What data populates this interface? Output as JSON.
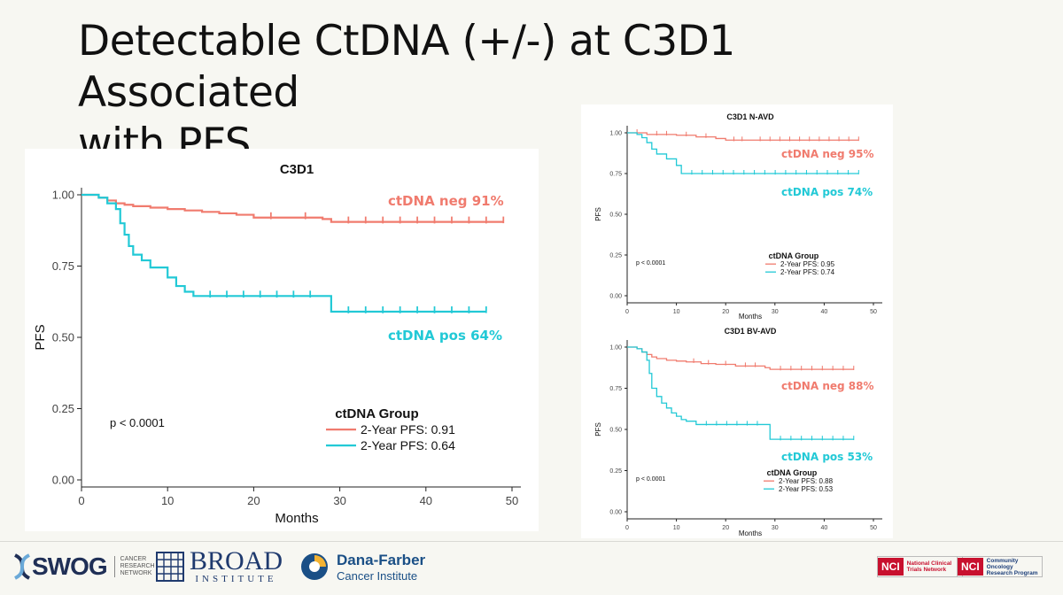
{
  "slide": {
    "title_line1": "Detectable CtDNA (+/-) at C3D1 Associated",
    "title_line2": "with PFS"
  },
  "colors": {
    "neg": "#f07b6e",
    "pos": "#22c9d6"
  },
  "chart_data": [
    {
      "type": "line",
      "title": "C3D1",
      "xlabel": "Months",
      "ylabel": "PFS",
      "xlim": [
        0,
        50
      ],
      "ylim": [
        0,
        1
      ],
      "xticks": [
        "0",
        "10",
        "20",
        "30",
        "40",
        "50"
      ],
      "yticks": [
        "0.00",
        "0.25",
        "0.50",
        "0.75",
        "1.00"
      ],
      "pvalue": "p < 0.0001",
      "legend_title": "ctDNA Group",
      "series": [
        {
          "name": "2-Year PFS: 0.91",
          "annotation": "ctDNA neg 91%",
          "x": [
            0,
            2,
            3,
            4,
            5,
            6,
            8,
            10,
            12,
            14,
            16,
            18,
            20,
            24,
            28,
            29,
            49
          ],
          "y": [
            1.0,
            0.99,
            0.98,
            0.97,
            0.965,
            0.96,
            0.955,
            0.95,
            0.945,
            0.94,
            0.935,
            0.93,
            0.92,
            0.92,
            0.915,
            0.905,
            0.905
          ]
        },
        {
          "name": "2-Year PFS: 0.64",
          "annotation": "ctDNA pos 64%",
          "x": [
            0,
            2,
            3,
            4,
            4.5,
            5,
            5.5,
            6,
            7,
            8,
            9,
            10,
            11,
            12,
            13,
            28.5,
            29,
            47
          ],
          "y": [
            1.0,
            0.99,
            0.97,
            0.95,
            0.9,
            0.86,
            0.82,
            0.79,
            0.77,
            0.745,
            0.745,
            0.71,
            0.68,
            0.66,
            0.645,
            0.645,
            0.59,
            0.59
          ]
        }
      ]
    },
    {
      "type": "line",
      "title": "C3D1 N-AVD",
      "xlabel": "Months",
      "ylabel": "PFS",
      "xlim": [
        0,
        50
      ],
      "ylim": [
        0,
        1
      ],
      "xticks": [
        "0",
        "10",
        "20",
        "30",
        "40",
        "50"
      ],
      "yticks": [
        "0.00",
        "0.25",
        "0.50",
        "0.75",
        "1.00"
      ],
      "pvalue": "p < 0.0001",
      "legend_title": "ctDNA Group",
      "series": [
        {
          "name": "2-Year PFS: 0.95",
          "annotation": "ctDNA neg 95%",
          "x": [
            0,
            4,
            10,
            14,
            18,
            20,
            25,
            47
          ],
          "y": [
            1.0,
            0.99,
            0.985,
            0.975,
            0.965,
            0.955,
            0.955,
            0.955
          ]
        },
        {
          "name": "2-Year PFS: 0.74",
          "annotation": "ctDNA pos 74%",
          "x": [
            0,
            2,
            3,
            4,
            5,
            6,
            8,
            10,
            11,
            47
          ],
          "y": [
            1.0,
            0.99,
            0.97,
            0.94,
            0.9,
            0.87,
            0.84,
            0.8,
            0.75,
            0.75
          ]
        }
      ]
    },
    {
      "type": "line",
      "title": "C3D1 BV-AVD",
      "xlabel": "Months",
      "ylabel": "PFS",
      "xlim": [
        0,
        50
      ],
      "ylim": [
        0,
        1
      ],
      "xticks": [
        "0",
        "10",
        "20",
        "30",
        "40",
        "50"
      ],
      "yticks": [
        "0.00",
        "0.25",
        "0.50",
        "0.75",
        "1.00"
      ],
      "pvalue": "p < 0.0001",
      "legend_title": "ctDNA Group",
      "series": [
        {
          "name": "2-Year PFS: 0.88",
          "annotation": "ctDNA neg 88%",
          "x": [
            0,
            2,
            3,
            4,
            5,
            6,
            8,
            10,
            12,
            15,
            18,
            22,
            28,
            29,
            46
          ],
          "y": [
            1.0,
            0.99,
            0.97,
            0.955,
            0.94,
            0.93,
            0.92,
            0.915,
            0.91,
            0.9,
            0.895,
            0.885,
            0.875,
            0.865,
            0.865
          ]
        },
        {
          "name": "2-Year PFS: 0.53",
          "annotation": "ctDNA pos 53%",
          "x": [
            0,
            2,
            3,
            4,
            4.5,
            5,
            6,
            7,
            8,
            9,
            10,
            11,
            12,
            14,
            28.5,
            29,
            46
          ],
          "y": [
            1.0,
            0.99,
            0.97,
            0.92,
            0.84,
            0.75,
            0.7,
            0.66,
            0.63,
            0.6,
            0.58,
            0.56,
            0.55,
            0.53,
            0.53,
            0.44,
            0.44
          ]
        }
      ]
    }
  ],
  "logos": {
    "swog": {
      "name": "SWOG",
      "sub": "CANCER RESEARCH NETWORK"
    },
    "broad": {
      "name": "BROAD",
      "sub": "INSTITUTE"
    },
    "dana": {
      "name": "Dana-Farber",
      "sub": "Cancer Institute"
    },
    "nci1": {
      "tag": "NCI",
      "text": "National Clinical Trials Network"
    },
    "nci2": {
      "tag": "NCI",
      "text": "Community Oncology Research Program"
    }
  }
}
